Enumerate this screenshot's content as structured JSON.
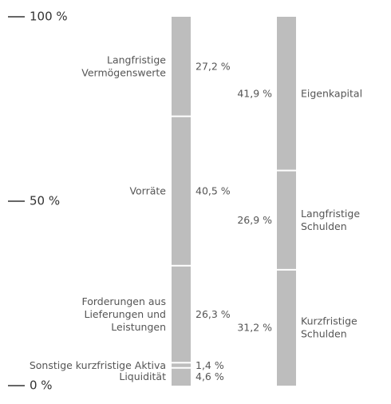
{
  "chart_data": {
    "type": "stacked_bar",
    "ylim": [
      0,
      100
    ],
    "yticks": [
      {
        "value": 0,
        "label": "0 %"
      },
      {
        "value": 50,
        "label": "50 %"
      },
      {
        "value": 100,
        "label": "100 %"
      }
    ],
    "series": [
      {
        "color": "#bdbdbd",
        "categories": [
          [
            "Langfristige",
            "Vermögenswerte"
          ],
          [
            "Vorräte"
          ],
          [
            "Forderungen aus",
            "Lieferungen und",
            "Leistungen"
          ],
          [
            "Sonstige kurzfristige Aktiva"
          ],
          [
            "Liquidität"
          ]
        ],
        "values": [
          27.2,
          40.5,
          26.3,
          1.4,
          4.6
        ],
        "value_labels": [
          "27,2 %",
          "40,5 %",
          "26,3 %",
          "1,4 %",
          "4,6 %"
        ]
      },
      {
        "color": "#bdbdbd",
        "categories": [
          [
            "Eigenkapital"
          ],
          [
            "Langfristige",
            "Schulden"
          ],
          [
            "Kurzfristige",
            "Schulden"
          ]
        ],
        "values": [
          41.9,
          26.9,
          31.2
        ],
        "value_labels": [
          "41,9 %",
          "26,9 %",
          "31,2 %"
        ]
      }
    ]
  }
}
